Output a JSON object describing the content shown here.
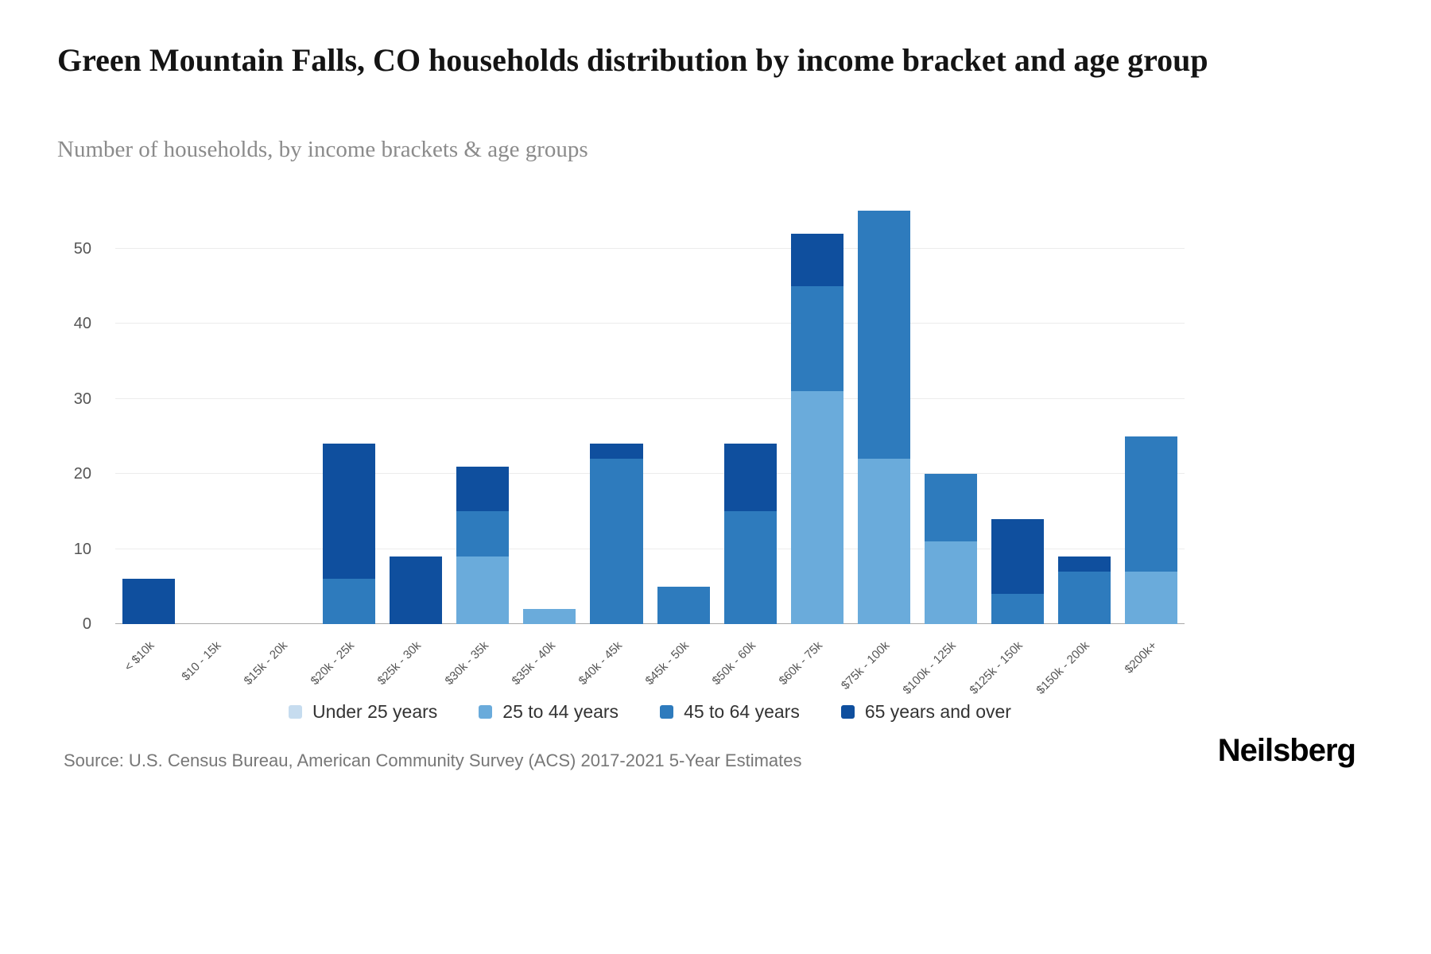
{
  "page": {
    "title": "Green Mountain Falls, CO households distribution by income bracket and age group",
    "subtitle": "Number of households, by income brackets & age groups",
    "source": "Source: U.S. Census Bureau, American Community Survey (ACS) 2017-2021 5-Year Estimates",
    "brand": "Neilsberg"
  },
  "chart_data": {
    "type": "bar",
    "stacked": true,
    "title": "Green Mountain Falls, CO households distribution by income bracket and age group",
    "xlabel": "",
    "ylabel": "Number of households",
    "categories": [
      "< $10k",
      "$10 - 15k",
      "$15k - 20k",
      "$20k - 25k",
      "$25k - 30k",
      "$30k - 35k",
      "$35k - 40k",
      "$40k - 45k",
      "$45k - 50k",
      "$50k - 60k",
      "$60k - 75k",
      "$75k - 100k",
      "$100k - 125k",
      "$125k - 150k",
      "$150k - 200k",
      "$200k+"
    ],
    "series": [
      {
        "name": "Under 25 years",
        "color": "#c6dcef",
        "values": [
          0,
          0,
          0,
          0,
          0,
          0,
          0,
          0,
          0,
          0,
          0,
          0,
          0,
          0,
          0,
          0
        ]
      },
      {
        "name": "25 to 44 years",
        "color": "#6aabdb",
        "values": [
          0,
          0,
          0,
          0,
          0,
          9,
          2,
          0,
          0,
          0,
          31,
          22,
          11,
          0,
          0,
          7
        ]
      },
      {
        "name": "45 to 64 years",
        "color": "#2e7bbd",
        "values": [
          0,
          0,
          0,
          6,
          0,
          6,
          0,
          22,
          5,
          15,
          14,
          33,
          9,
          4,
          7,
          18
        ]
      },
      {
        "name": "65 years and over",
        "color": "#0f4f9e",
        "values": [
          6,
          0,
          0,
          18,
          9,
          6,
          0,
          2,
          0,
          9,
          7,
          0,
          0,
          10,
          2,
          0
        ]
      }
    ],
    "totals": [
      6,
      0,
      0,
      24,
      9,
      21,
      2,
      24,
      5,
      24,
      52,
      55,
      20,
      14,
      9,
      25
    ],
    "ylim": [
      0,
      55
    ],
    "yticks": [
      0,
      10,
      20,
      30,
      40,
      50
    ],
    "grid": "horizontal",
    "legend_position": "bottom"
  }
}
